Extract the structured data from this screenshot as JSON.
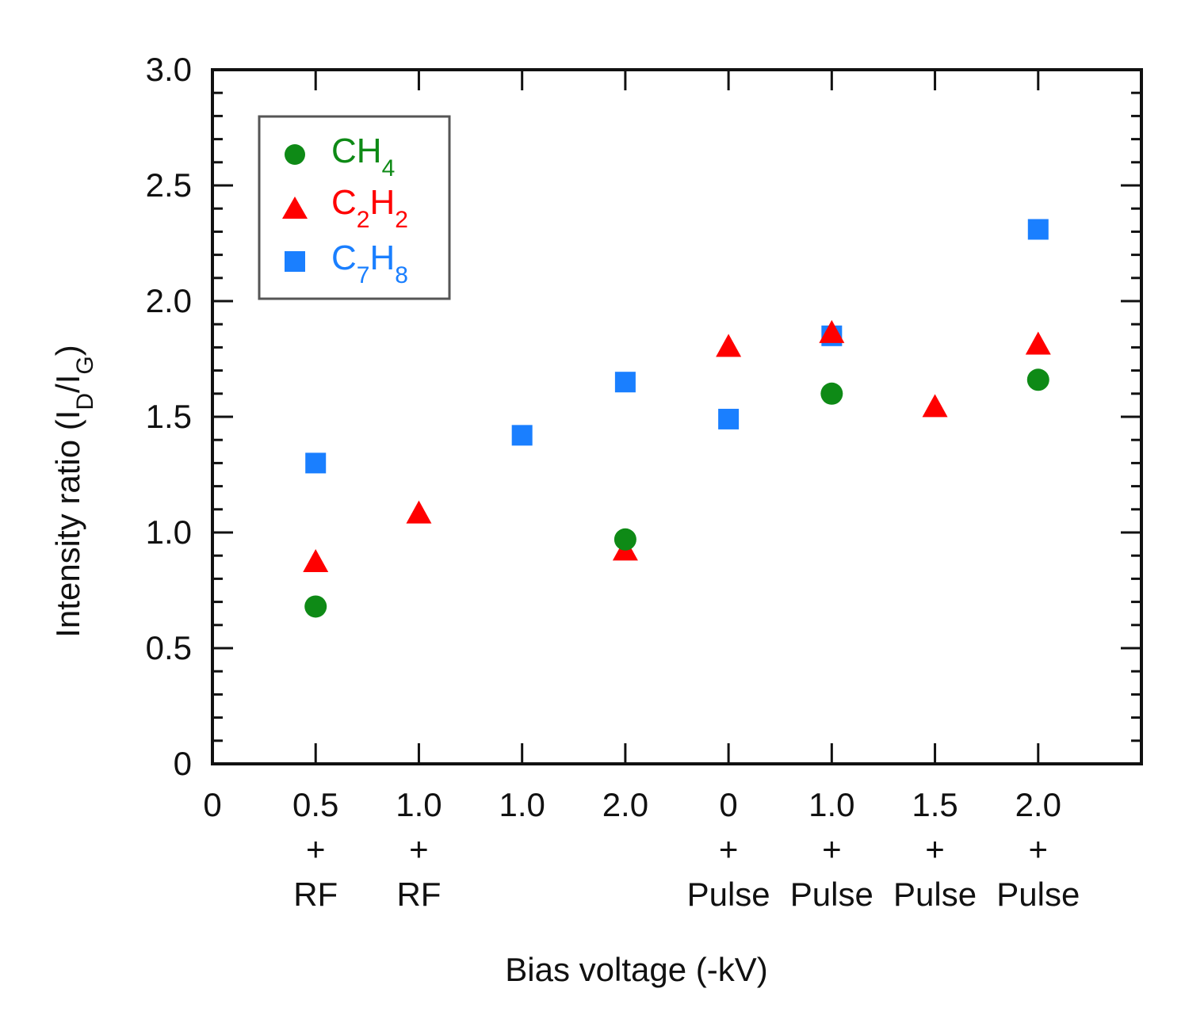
{
  "chart_data": {
    "type": "scatter",
    "title": "",
    "xlabel": "Bias voltage (-kV)",
    "ylabel": {
      "main": "Intensity ratio (I",
      "sub1": "D",
      "mid": "/I",
      "sub2": "G",
      "end": ")"
    },
    "xlim": [
      0,
      9
    ],
    "ylim": [
      0,
      3.0
    ],
    "yticks": [
      "0",
      "0.5",
      "1.0",
      "1.5",
      "2.0",
      "2.5",
      "3.0"
    ],
    "x_zero_label": "0",
    "categories": [
      {
        "value": "0.5",
        "plus": "+",
        "mode": "RF"
      },
      {
        "value": "1.0",
        "plus": "+",
        "mode": "RF"
      },
      {
        "value": "1.0",
        "plus": "",
        "mode": ""
      },
      {
        "value": "2.0",
        "plus": "",
        "mode": ""
      },
      {
        "value": "0",
        "plus": "+",
        "mode": "Pulse"
      },
      {
        "value": "1.0",
        "plus": "+",
        "mode": "Pulse"
      },
      {
        "value": "1.5",
        "plus": "+",
        "mode": "Pulse"
      },
      {
        "value": "2.0",
        "plus": "+",
        "mode": "Pulse"
      }
    ],
    "series": [
      {
        "name": "C7H8",
        "label": {
          "a": "C",
          "s1": "7",
          "b": "H",
          "s2": "8"
        },
        "marker": "square",
        "color": "#1a7fff",
        "points": [
          {
            "x": 1,
            "y": 1.3
          },
          {
            "x": 3,
            "y": 1.42
          },
          {
            "x": 4,
            "y": 1.65
          },
          {
            "x": 5,
            "y": 1.49
          },
          {
            "x": 6,
            "y": 1.85
          },
          {
            "x": 8,
            "y": 2.31
          }
        ]
      },
      {
        "name": "C2H2",
        "label": {
          "a": "C",
          "s1": "2",
          "b": "H",
          "s2": "2"
        },
        "marker": "triangle",
        "color": "#ff0000",
        "points": [
          {
            "x": 1,
            "y": 0.87
          },
          {
            "x": 2,
            "y": 1.08
          },
          {
            "x": 4,
            "y": 0.92
          },
          {
            "x": 5,
            "y": 1.8
          },
          {
            "x": 6,
            "y": 1.86
          },
          {
            "x": 7,
            "y": 1.54
          },
          {
            "x": 8,
            "y": 1.81
          }
        ]
      },
      {
        "name": "CH4",
        "label": {
          "a": "CH",
          "s1": "4",
          "b": "",
          "s2": ""
        },
        "marker": "circle",
        "color": "#0e8a16",
        "points": [
          {
            "x": 1,
            "y": 0.68
          },
          {
            "x": 4,
            "y": 0.97
          },
          {
            "x": 6,
            "y": 1.6
          },
          {
            "x": 8,
            "y": 1.66
          }
        ]
      }
    ],
    "legend_order": [
      "CH4",
      "C2H2",
      "C7H8"
    ],
    "legend_position": "top-left",
    "grid": false
  }
}
